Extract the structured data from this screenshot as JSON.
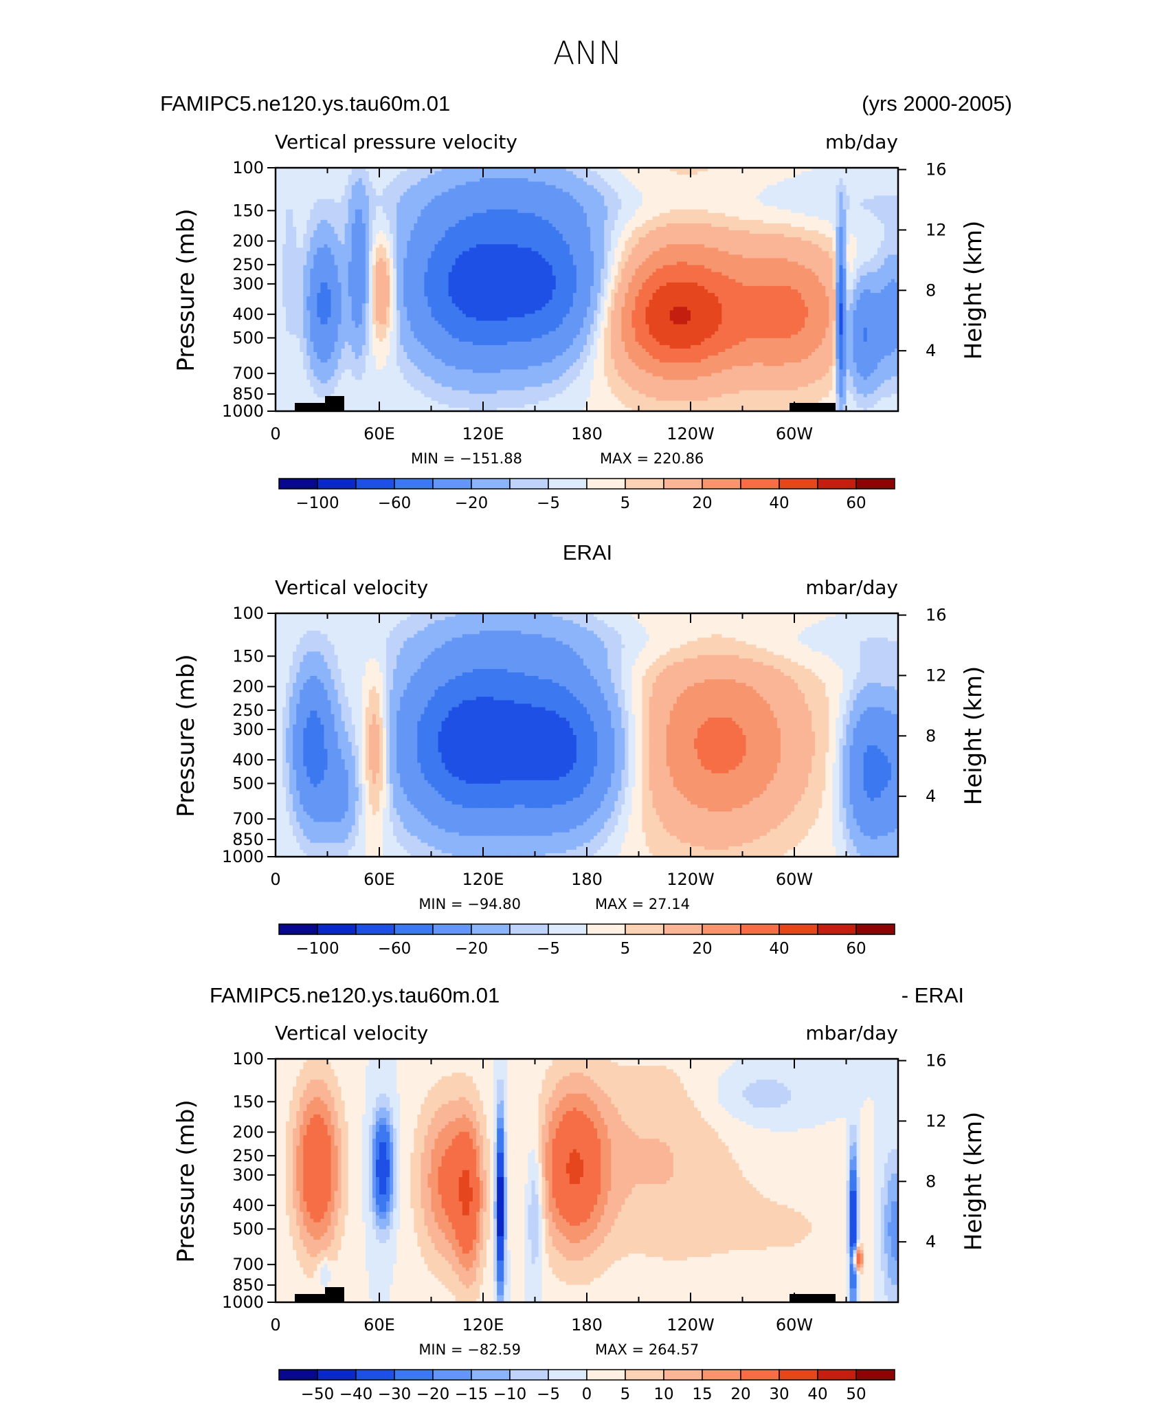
{
  "figure_title": "ANN",
  "colors": {
    "cold": [
      "#08088c",
      "#0a28c8",
      "#1e50e6",
      "#3c78f0",
      "#6496f5",
      "#8cb4fa",
      "#bed2fa",
      "#dceafc"
    ],
    "warm": [
      "#fff0e4",
      "#fcd2b4",
      "#fab496",
      "#f7966e",
      "#f56e46",
      "#e6461e",
      "#c31e0f",
      "#8c0505"
    ]
  },
  "chart_data": [
    {
      "type": "heatmap",
      "id": "model",
      "left_title": "FAMIPC5.ne120.ys.tau60m.01",
      "right_title": "(yrs 2000-2005)",
      "variable": "Vertical pressure velocity",
      "units": "mb/day",
      "xlabel": "",
      "ylabel": "Pressure (mb)",
      "y2label": "Height (km)",
      "xticks": [
        "0",
        "60E",
        "120E",
        "180",
        "120W",
        "60W"
      ],
      "yticks": [
        "100",
        "150",
        "200",
        "250",
        "300",
        "400",
        "500",
        "700",
        "850",
        "1000"
      ],
      "y2ticks": [
        "16",
        "12",
        "8",
        "4"
      ],
      "ylim": [
        1000,
        100
      ],
      "min_label": "MIN = −151.88",
      "max_label": "MAX = 220.86",
      "min": -151.88,
      "max": 220.86,
      "colorbar_ticks": [
        "−100",
        "−60",
        "−20",
        "−5",
        "5",
        "20",
        "40",
        "60"
      ],
      "levels": [
        -100,
        -80,
        -60,
        -40,
        -20,
        -10,
        -5,
        0,
        5,
        10,
        20,
        30,
        40,
        50,
        60
      ],
      "topography_black_bars": true
    },
    {
      "type": "heatmap",
      "id": "obs",
      "center_title": "ERAI",
      "variable": "Vertical velocity",
      "units": "mbar/day",
      "xlabel": "",
      "ylabel": "Pressure (mb)",
      "y2label": "Height (km)",
      "xticks": [
        "0",
        "60E",
        "120E",
        "180",
        "120W",
        "60W"
      ],
      "yticks": [
        "100",
        "150",
        "200",
        "250",
        "300",
        "400",
        "500",
        "700",
        "850",
        "1000"
      ],
      "y2ticks": [
        "16",
        "12",
        "8",
        "4"
      ],
      "ylim": [
        1000,
        100
      ],
      "min_label": "MIN = −94.80",
      "max_label": "MAX =  27.14",
      "min": -94.8,
      "max": 27.14,
      "colorbar_ticks": [
        "−100",
        "−60",
        "−20",
        "−5",
        "5",
        "20",
        "40",
        "60"
      ],
      "levels": [
        -100,
        -80,
        -60,
        -40,
        -20,
        -10,
        -5,
        0,
        5,
        10,
        20,
        30,
        40,
        50,
        60
      ],
      "topography_black_bars": false
    },
    {
      "type": "heatmap",
      "id": "diff",
      "left_title": "FAMIPC5.ne120.ys.tau60m.01",
      "right_title": "- ERAI",
      "variable": "Vertical velocity",
      "units": "mbar/day",
      "xlabel": "",
      "ylabel": "Pressure (mb)",
      "y2label": "Height (km)",
      "xticks": [
        "0",
        "60E",
        "120E",
        "180",
        "120W",
        "60W"
      ],
      "yticks": [
        "100",
        "150",
        "200",
        "250",
        "300",
        "400",
        "500",
        "700",
        "850",
        "1000"
      ],
      "y2ticks": [
        "16",
        "12",
        "8",
        "4"
      ],
      "ylim": [
        1000,
        100
      ],
      "min_label": "MIN = −82.59",
      "max_label": "MAX = 264.57",
      "min": -82.59,
      "max": 264.57,
      "colorbar_ticks": [
        "−50",
        "−40",
        "−30",
        "−20",
        "−15",
        "−10",
        "−5",
        "0",
        "5",
        "10",
        "15",
        "20",
        "30",
        "40",
        "50"
      ],
      "levels": [
        -50,
        -40,
        -30,
        -20,
        -15,
        -10,
        -5,
        0,
        5,
        10,
        15,
        20,
        30,
        40,
        50
      ],
      "topography_black_bars": true
    }
  ]
}
